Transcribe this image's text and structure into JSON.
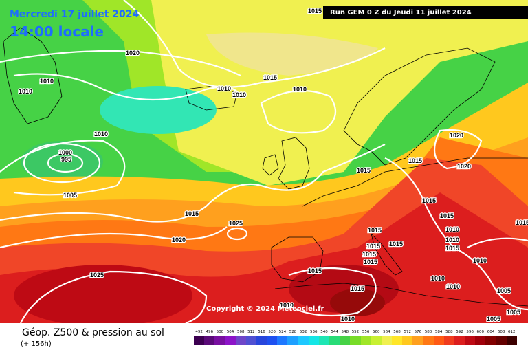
{
  "header": {
    "date_label": "Mercredi 17 juillet 2024",
    "time_label": "14:00 locale",
    "run_label": "Run GEM 0 Z du Jeudi 11 juillet 2024"
  },
  "copyright": "Copyright © 2024 Meteociel.fr",
  "footer": {
    "title": "Géop. Z500 & pression au sol",
    "subtitle": "(+ 156h)"
  },
  "isobars": [
    {
      "id": "isobar-1020",
      "value": "1020"
    },
    {
      "id": "isobar-1015",
      "value": "1015"
    },
    {
      "id": "isobar-1010",
      "value": "1010"
    },
    {
      "id": "isobar-1005",
      "value": "1005"
    },
    {
      "id": "isobar-1000",
      "value": "1000"
    },
    {
      "id": "isobar-995",
      "value": "995"
    },
    {
      "id": "isobar-1025",
      "value": "1025"
    }
  ],
  "pressure_labels": [
    "1015",
    "1020",
    "1010",
    "1010",
    "1010",
    "1010",
    "1015",
    "1010",
    "1010",
    "1000",
    "995",
    "1005",
    "1020",
    "1015",
    "1020",
    "1015",
    "1015",
    "1025",
    "1015",
    "1015",
    "1020",
    "1015",
    "1015",
    "1015",
    "1015",
    "1015",
    "1015",
    "1010",
    "1010",
    "1015",
    "1015",
    "1025",
    "1015",
    "1010",
    "1010",
    "1005",
    "1005",
    "1005",
    "1010",
    "1010",
    "1010"
  ],
  "scale": {
    "labels": [
      "492",
      "496",
      "500",
      "504",
      "508",
      "512",
      "516",
      "520",
      "524",
      "528",
      "532",
      "536",
      "540",
      "544",
      "548",
      "552",
      "556",
      "560",
      "564",
      "568",
      "572",
      "576",
      "580",
      "584",
      "588",
      "592",
      "596",
      "600",
      "604",
      "608",
      "612"
    ],
    "colors": [
      "#3c0050",
      "#5a0a78",
      "#780fa0",
      "#8c14c8",
      "#6e46c8",
      "#5050d2",
      "#2846dc",
      "#1e50f0",
      "#1e78ff",
      "#1ea0ff",
      "#1ec8ff",
      "#14e6e6",
      "#1ee6b4",
      "#28dc78",
      "#46d246",
      "#78dc28",
      "#a0e628",
      "#c8f032",
      "#f0f050",
      "#ffe628",
      "#ffc81e",
      "#ffa01e",
      "#ff7814",
      "#ff5a14",
      "#f03c1e",
      "#dc1e1e",
      "#be0a14",
      "#a0000a",
      "#820000",
      "#640000",
      "#3c0000"
    ]
  }
}
